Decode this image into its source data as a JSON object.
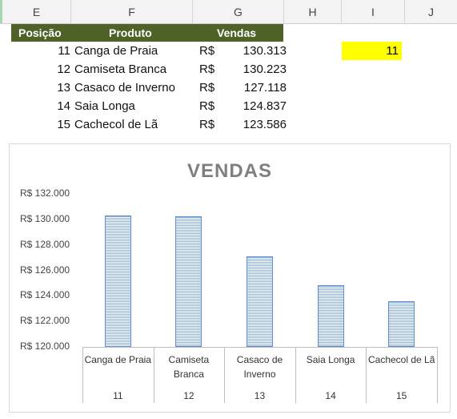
{
  "columns": [
    "E",
    "F",
    "G",
    "H",
    "I",
    "J"
  ],
  "table": {
    "headers": [
      "Posição",
      "Produto",
      "Vendas"
    ],
    "rows": [
      {
        "pos": "11",
        "produto": "Canga de Praia",
        "moeda": "R$",
        "vendas": "130.313"
      },
      {
        "pos": "12",
        "produto": "Camiseta Branca",
        "moeda": "R$",
        "vendas": "130.223"
      },
      {
        "pos": "13",
        "produto": "Casaco de Inverno",
        "moeda": "R$",
        "vendas": "127.118"
      },
      {
        "pos": "14",
        "produto": "Saia Longa",
        "moeda": "R$",
        "vendas": "124.837"
      },
      {
        "pos": "15",
        "produto": "Cachecol de Lã",
        "moeda": "R$",
        "vendas": "123.586"
      }
    ]
  },
  "input_cell": {
    "value": "11"
  },
  "colors": {
    "header_bg": "#4f6228",
    "highlight": "#ffff00",
    "bar": "#5b8fd1"
  },
  "chart_data": {
    "type": "bar",
    "title": "VENDAS",
    "categories": [
      "Canga de Praia",
      "Camiseta Branca",
      "Casaco de Inverno",
      "Saia Longa",
      "Cachecol de Lã"
    ],
    "category_lines": [
      [
        "Canga de Praia"
      ],
      [
        "Camiseta",
        "Branca"
      ],
      [
        "Casaco de",
        "Inverno"
      ],
      [
        "Saia Longa"
      ],
      [
        "Cachecol de Lã"
      ]
    ],
    "positions": [
      "11",
      "12",
      "13",
      "14",
      "15"
    ],
    "values": [
      130313,
      130223,
      127118,
      124837,
      123586
    ],
    "ylim": [
      120000,
      132000
    ],
    "yticks": [
      "R$ 120.000",
      "R$ 122.000",
      "R$ 124.000",
      "R$ 126.000",
      "R$ 128.000",
      "R$ 130.000",
      "R$ 132.000"
    ],
    "grid": false
  }
}
